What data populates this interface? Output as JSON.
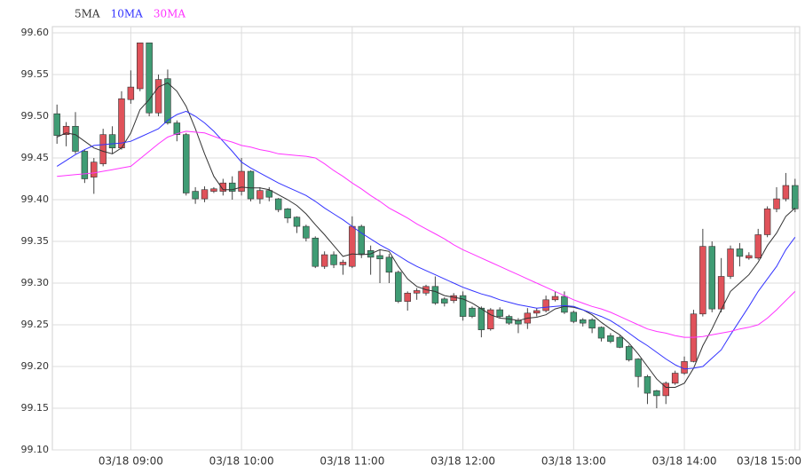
{
  "chart_data": {
    "type": "candlestick",
    "categories": [
      null,
      null,
      null,
      null,
      null,
      null,
      null,
      null,
      "03/18 09:00",
      null,
      null,
      null,
      null,
      null,
      null,
      null,
      null,
      null,
      null,
      null,
      "03/18 10:00",
      null,
      null,
      null,
      null,
      null,
      null,
      null,
      null,
      null,
      null,
      null,
      "03/18 11:00",
      null,
      null,
      null,
      null,
      null,
      null,
      null,
      null,
      null,
      null,
      null,
      "03/18 12:00",
      null,
      null,
      null,
      null,
      null,
      null,
      null,
      null,
      null,
      null,
      null,
      "03/18 13:00",
      null,
      null,
      null,
      null,
      null,
      null,
      null,
      null,
      null,
      null,
      null,
      "03/18 14:00",
      null,
      null,
      null,
      null,
      null,
      null,
      null,
      null,
      null,
      null,
      null,
      "03/18 15:00"
    ],
    "open": [
      99.503,
      99.478,
      99.488,
      99.458,
      99.427,
      99.443,
      99.478,
      99.462,
      99.52,
      99.533,
      99.588,
      99.504,
      99.545,
      99.492,
      99.478,
      99.41,
      99.401,
      99.41,
      99.41,
      99.42,
      99.41,
      99.434,
      99.401,
      99.411,
      99.401,
      99.389,
      99.379,
      99.368,
      99.354,
      99.32,
      99.334,
      99.322,
      99.32,
      99.368,
      99.339,
      99.333,
      99.331,
      99.313,
      99.278,
      99.288,
      99.288,
      99.296,
      99.281,
      99.279,
      99.285,
      99.27,
      99.27,
      99.245,
      99.268,
      99.26,
      99.255,
      99.252,
      99.264,
      99.267,
      99.28,
      99.284,
      99.265,
      99.256,
      99.256,
      99.247,
      99.237,
      99.235,
      99.224,
      99.209,
      99.188,
      99.171,
      99.165,
      99.18,
      99.192,
      99.206,
      99.263,
      99.344,
      99.269,
      99.308,
      99.341,
      99.33,
      99.33,
      99.358,
      99.389,
      99.401,
      99.417
    ],
    "high": [
      99.514,
      99.493,
      99.505,
      99.46,
      99.45,
      99.485,
      99.488,
      99.53,
      99.555,
      99.588,
      99.588,
      99.55,
      99.556,
      99.495,
      99.48,
      99.415,
      99.416,
      99.415,
      99.425,
      99.428,
      99.45,
      99.435,
      99.415,
      99.415,
      99.402,
      99.39,
      99.38,
      99.37,
      99.356,
      99.338,
      99.338,
      99.328,
      99.38,
      99.37,
      99.345,
      99.34,
      99.335,
      99.315,
      99.29,
      99.294,
      99.298,
      99.308,
      99.283,
      99.288,
      99.29,
      99.272,
      99.272,
      99.27,
      99.271,
      99.262,
      99.258,
      99.27,
      99.27,
      99.285,
      99.29,
      99.29,
      99.267,
      99.258,
      99.258,
      99.248,
      99.24,
      99.237,
      99.226,
      99.21,
      99.19,
      99.172,
      99.182,
      99.195,
      99.212,
      99.268,
      99.365,
      99.35,
      99.33,
      99.345,
      99.348,
      99.337,
      99.365,
      99.392,
      99.415,
      99.432,
      99.425
    ],
    "low": [
      99.467,
      99.464,
      99.455,
      99.42,
      99.407,
      99.44,
      99.455,
      99.46,
      99.515,
      99.53,
      99.5,
      99.5,
      99.49,
      99.47,
      99.405,
      99.395,
      99.397,
      99.408,
      99.405,
      99.4,
      99.405,
      99.398,
      99.395,
      99.398,
      99.385,
      99.372,
      99.36,
      99.35,
      99.318,
      99.317,
      99.318,
      99.31,
      99.318,
      99.33,
      99.31,
      99.3,
      99.3,
      99.276,
      99.267,
      99.28,
      99.285,
      99.274,
      99.272,
      99.276,
      99.255,
      99.258,
      99.235,
      99.243,
      99.258,
      99.25,
      99.24,
      99.245,
      99.26,
      99.265,
      99.278,
      99.263,
      99.252,
      99.248,
      99.24,
      99.23,
      99.228,
      99.222,
      99.206,
      99.175,
      99.155,
      99.15,
      99.155,
      99.178,
      99.19,
      99.205,
      99.26,
      99.265,
      99.265,
      99.305,
      99.32,
      99.328,
      99.328,
      99.355,
      99.385,
      99.398,
      99.385
    ],
    "close": [
      99.477,
      99.488,
      99.458,
      99.425,
      99.445,
      99.478,
      99.462,
      99.521,
      99.535,
      99.588,
      99.504,
      99.544,
      99.492,
      99.478,
      99.408,
      99.401,
      99.412,
      99.413,
      99.42,
      99.41,
      99.434,
      99.401,
      99.411,
      99.403,
      99.388,
      99.378,
      99.368,
      99.354,
      99.32,
      99.334,
      99.322,
      99.325,
      99.368,
      99.335,
      99.331,
      99.329,
      99.313,
      99.278,
      99.288,
      99.291,
      99.296,
      99.276,
      99.276,
      99.285,
      99.26,
      99.26,
      99.244,
      99.268,
      99.26,
      99.252,
      99.251,
      99.264,
      99.267,
      99.28,
      99.284,
      99.265,
      99.254,
      99.252,
      99.246,
      99.234,
      99.23,
      99.223,
      99.208,
      99.188,
      99.168,
      99.165,
      99.18,
      99.192,
      99.206,
      99.263,
      99.344,
      99.269,
      99.308,
      99.341,
      99.332,
      99.333,
      99.358,
      99.389,
      99.401,
      99.417,
      99.389
    ],
    "up_color": "#e0525a",
    "down_color": "#3f9c74",
    "lines": [
      {
        "name": "5MA",
        "color": "#333333",
        "values": [
          99.475,
          99.48,
          99.478,
          99.47,
          99.462,
          99.458,
          99.455,
          99.462,
          99.48,
          99.508,
          99.52,
          99.535,
          99.54,
          99.53,
          99.512,
          99.485,
          99.455,
          99.428,
          99.412,
          99.412,
          99.415,
          99.414,
          99.414,
          99.412,
          99.406,
          99.4,
          99.393,
          99.383,
          99.37,
          99.358,
          99.345,
          99.332,
          99.335,
          99.334,
          99.335,
          99.34,
          99.338,
          99.32,
          99.305,
          99.296,
          99.292,
          99.29,
          99.285,
          99.283,
          99.281,
          99.276,
          99.269,
          99.262,
          99.258,
          99.257,
          99.255,
          99.258,
          99.259,
          99.262,
          99.269,
          99.272,
          99.271,
          99.268,
          99.262,
          99.253,
          99.245,
          99.238,
          99.228,
          99.215,
          99.2,
          99.185,
          99.175,
          99.175,
          99.18,
          99.198,
          99.225,
          99.245,
          99.268,
          99.29,
          99.3,
          99.31,
          99.325,
          99.345,
          99.36,
          99.38,
          99.39
        ]
      },
      {
        "name": "10MA",
        "color": "#3333ff",
        "values": [
          99.44,
          99.447,
          99.454,
          99.46,
          99.465,
          99.466,
          99.467,
          99.468,
          99.47,
          99.475,
          99.48,
          99.485,
          99.495,
          99.502,
          99.506,
          99.5,
          99.492,
          99.482,
          99.47,
          99.458,
          99.445,
          99.438,
          99.432,
          99.426,
          99.42,
          99.415,
          99.41,
          99.405,
          99.398,
          99.39,
          99.383,
          99.376,
          99.368,
          99.36,
          99.353,
          99.346,
          99.34,
          99.333,
          99.326,
          99.32,
          99.315,
          99.31,
          99.305,
          99.3,
          99.295,
          99.291,
          99.287,
          99.284,
          99.28,
          99.277,
          99.274,
          99.272,
          99.27,
          99.271,
          99.272,
          99.273,
          99.272,
          99.268,
          99.264,
          99.26,
          99.255,
          99.248,
          99.24,
          99.232,
          99.225,
          99.217,
          99.209,
          99.202,
          99.197,
          99.198,
          99.2,
          99.21,
          99.22,
          99.238,
          99.255,
          99.272,
          99.29,
          99.305,
          99.32,
          99.34,
          99.355
        ]
      },
      {
        "name": "30MA",
        "color": "#ff33ff",
        "values": [
          99.428,
          99.429,
          99.43,
          99.431,
          99.432,
          99.434,
          99.436,
          99.438,
          99.44,
          99.449,
          99.458,
          99.467,
          99.475,
          99.479,
          99.482,
          99.481,
          99.48,
          99.476,
          99.472,
          99.469,
          99.465,
          99.463,
          99.46,
          99.458,
          99.455,
          99.454,
          99.453,
          99.452,
          99.45,
          99.443,
          99.435,
          99.428,
          99.42,
          99.413,
          99.405,
          99.398,
          99.39,
          99.384,
          99.378,
          99.371,
          99.365,
          99.359,
          99.353,
          99.346,
          99.34,
          99.335,
          99.33,
          99.325,
          99.32,
          99.315,
          99.31,
          99.305,
          99.3,
          99.295,
          99.29,
          99.285,
          99.28,
          99.276,
          99.272,
          99.269,
          99.265,
          99.26,
          99.255,
          99.25,
          99.245,
          99.242,
          99.24,
          99.237,
          99.235,
          99.235,
          99.236,
          99.238,
          99.24,
          99.242,
          99.245,
          99.247,
          99.25,
          99.258,
          99.268,
          99.279,
          99.29
        ]
      }
    ],
    "ylim": [
      99.1,
      99.6
    ],
    "yticks": [
      {
        "value": 99.1,
        "label": "99.10"
      },
      99.15,
      {
        "value": 99.2,
        "label": "99.20"
      },
      99.25,
      {
        "value": 99.3,
        "label": "99.30"
      },
      99.35,
      {
        "value": 99.4,
        "label": "99.40"
      },
      99.45,
      {
        "value": 99.5,
        "label": "99.50"
      },
      99.55,
      {
        "value": 99.6,
        "label": "99.60"
      }
    ],
    "grid": true
  }
}
